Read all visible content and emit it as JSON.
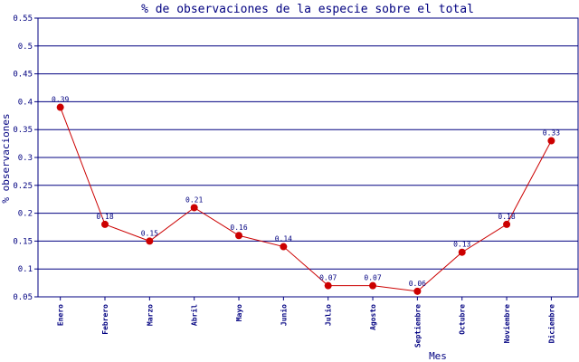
{
  "colors": {
    "axis": "#000080",
    "grid": "#000080",
    "line": "#cc0000",
    "marker": "#cc0000",
    "text": "#000080"
  },
  "chart_data": {
    "type": "line",
    "title": "% de observaciones de la especie sobre el total",
    "xlabel": "Mes",
    "ylabel": "% observaciones",
    "ylim": [
      0.05,
      0.55
    ],
    "yticks": [
      "0.05",
      "0.1",
      "0.15",
      "0.2",
      "0.25",
      "0.3",
      "0.35",
      "0.4",
      "0.45",
      "0.5",
      "0.55"
    ],
    "grid": true,
    "categories": [
      "Enero",
      "Febrero",
      "Marzo",
      "Abril",
      "Mayo",
      "Junio",
      "Julio",
      "Agosto",
      "Septiembre",
      "Octubre",
      "Noviembre",
      "Diciembre"
    ],
    "values": [
      0.39,
      0.18,
      0.15,
      0.21,
      0.16,
      0.14,
      0.07,
      0.07,
      0.06,
      0.13,
      0.18,
      0.33
    ],
    "data_labels": [
      "0.39",
      "0.18",
      "0.15",
      "0.21",
      "0.16",
      "0.14",
      "0.07",
      "0.07",
      "0.06",
      "0.13",
      "0.18",
      "0.33"
    ]
  }
}
